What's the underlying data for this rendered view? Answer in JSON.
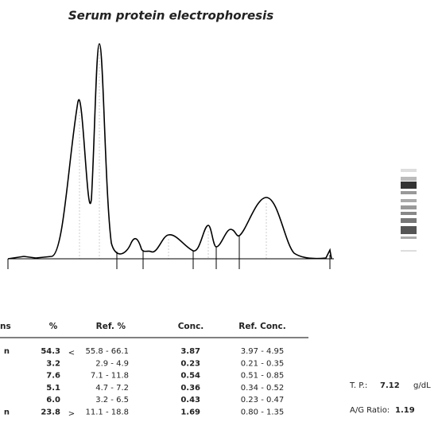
{
  "title": "Serum protein electrophoresis",
  "table": {
    "headers": [
      "ns",
      "%",
      "Ref. %",
      "Conc.",
      "Ref. Conc."
    ],
    "rows": [
      {
        "label": "n",
        "percent": "54.3",
        "flag": "<",
        "ref_percent": "55.8 - 66.1",
        "conc": "3.87",
        "ref_conc": "3.97 - 4.95"
      },
      {
        "percent": "3.2",
        "ref_percent": "2.9 - 4.9",
        "conc": "0.23",
        "ref_conc": "0.21 - 0.35"
      },
      {
        "percent": "7.6",
        "ref_percent": "7.1 - 11.8",
        "conc": "0.54",
        "ref_conc": "0.51 - 0.85"
      },
      {
        "percent": "5.1",
        "ref_percent": "4.7 - 7.2",
        "conc": "0.36",
        "ref_conc": "0.34 - 0.52"
      },
      {
        "percent": "6.0",
        "ref_percent": "3.2 - 6.5",
        "conc": "0.43",
        "ref_conc": "0.23 - 0.47"
      },
      {
        "label": "n",
        "percent": "23.8",
        "flag": ">",
        "ref_percent": "11.1 - 18.8",
        "conc": "1.69",
        "ref_conc": "0.80 - 1.35"
      }
    ]
  },
  "summary": {
    "tp_label": "T. P.:",
    "tp_value": "7.12",
    "tp_unit": "g/dL",
    "ag_label": "A/G Ratio:",
    "ag_value": "1.19"
  }
}
